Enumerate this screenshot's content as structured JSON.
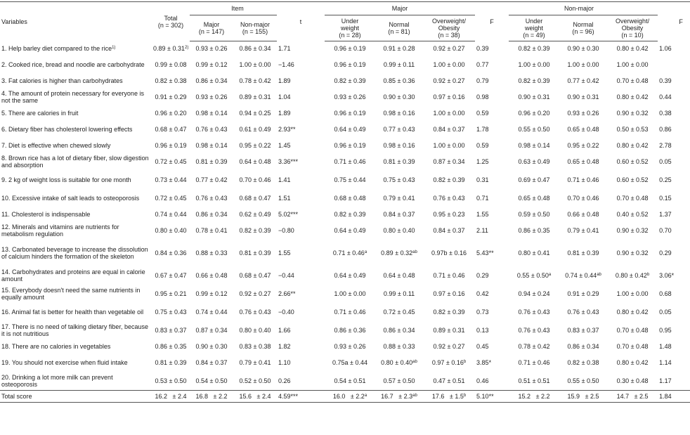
{
  "headers": {
    "variables": "Variables",
    "total": "Total",
    "total_n": "(n = 302)",
    "item": "Item",
    "item_major": "Major",
    "item_major_n": "(n = 147)",
    "item_nonmajor": "Non-major",
    "item_nonmajor_n": "(n = 155)",
    "t": "t",
    "major": "Major",
    "underweight": "Under",
    "underweight2": "weight",
    "major_under_n": "(n = 28)",
    "normal": "Normal",
    "major_normal_n": "(n = 81)",
    "overweight": "Overweight/",
    "obesity": "Obesity",
    "major_over_n": "(n = 38)",
    "f": "F",
    "nonmajor": "Non-major",
    "nonmajor_under_n": "(n = 49)",
    "nonmajor_normal_n": "(n = 96)",
    "nonmajor_over_n": "(n = 10)",
    "f2": "F"
  },
  "rows": [
    {
      "label": "1. Help barley diet compared to the rice",
      "sup": "1)",
      "total": "0.89 ± 0.31",
      "total_sup": "2)",
      "im": "0.93 ± 0.26",
      "inm": "0.86 ± 0.34",
      "t": "1.71",
      "mu": "0.96 ± 0.19",
      "mn": "0.91 ± 0.28",
      "mo": "0.92 ± 0.27",
      "f": "0.39",
      "nu": "0.82 ± 0.39",
      "nn": "0.90 ± 0.30",
      "no": "0.80 ± 0.42",
      "f2": "1.06"
    },
    {
      "label": "2. Cooked rice, bread and noodle are carbohydrate",
      "total": "0.99 ± 0.08",
      "im": "0.99 ± 0.12",
      "inm": "1.00 ± 0.00",
      "t": "−1.46",
      "mu": "0.96 ± 0.19",
      "mn": "0.99 ± 0.11",
      "mo": "1.00 ± 0.00",
      "f": "0.77",
      "nu": "1.00 ± 0.00",
      "nn": "1.00 ± 0.00",
      "no": "1.00 ± 0.00",
      "f2": ""
    },
    {
      "label": "3. Fat calories is higher than carbohydrates",
      "total": "0.82 ± 0.38",
      "im": "0.86 ± 0.34",
      "inm": "0.78 ± 0.42",
      "t": "1.89",
      "mu": "0.82 ± 0.39",
      "mn": "0.85 ± 0.36",
      "mo": "0.92 ± 0.27",
      "f": "0.79",
      "nu": "0.82 ± 0.39",
      "nn": "0.77 ± 0.42",
      "no": "0.70 ± 0.48",
      "f2": "0.39"
    },
    {
      "label": "4. The amount of protein necessary for everyone is not the same",
      "total": "0.91 ± 0.29",
      "im": "0.93 ± 0.26",
      "inm": "0.89 ± 0.31",
      "t": "1.04",
      "mu": "0.93 ± 0.26",
      "mn": "0.90 ± 0.30",
      "mo": "0.97 ± 0.16",
      "f": "0.98",
      "nu": "0.90 ± 0.31",
      "nn": "0.90 ± 0.31",
      "no": "0.80 ± 0.42",
      "f2": "0.44"
    },
    {
      "label": "5. There are calories in fruit",
      "total": "0.96 ± 0.20",
      "im": "0.98 ± 0.14",
      "inm": "0.94 ± 0.25",
      "t": "1.89",
      "mu": "0.96 ± 0.19",
      "mn": "0.98 ± 0.16",
      "mo": "1.00 ± 0.00",
      "f": "0.59",
      "nu": "0.96 ± 0.20",
      "nn": "0.93 ± 0.26",
      "no": "0.90 ± 0.32",
      "f2": "0.38"
    },
    {
      "label": "6. Dietary fiber has cholesterol lowering effects",
      "total": "0.68 ± 0.47",
      "im": "0.76 ± 0.43",
      "inm": "0.61 ± 0.49",
      "t": "2.93**",
      "mu": "0.64 ± 0.49",
      "mn": "0.77 ± 0.43",
      "mo": "0.84 ± 0.37",
      "f": "1.78",
      "nu": "0.55 ± 0.50",
      "nn": "0.65 ± 0.48",
      "no": "0.50 ± 0.53",
      "f2": "0.86"
    },
    {
      "label": "7. Diet is effective when chewed slowly",
      "total": "0.96 ± 0.19",
      "im": "0.98 ± 0.14",
      "inm": "0.95 ± 0.22",
      "t": "1.45",
      "mu": "0.96 ± 0.19",
      "mn": "0.98 ± 0.16",
      "mo": "1.00 ± 0.00",
      "f": "0.59",
      "nu": "0.98 ± 0.14",
      "nn": "0.95 ± 0.22",
      "no": "0.80 ± 0.42",
      "f2": "2.78"
    },
    {
      "label": "8. Brown rice has a lot of dietary fiber, slow digestion and absorption",
      "total": "0.72 ± 0.45",
      "im": "0.81 ± 0.39",
      "inm": "0.64 ± 0.48",
      "t": "3.36***",
      "mu": "0.71 ± 0.46",
      "mn": "0.81 ± 0.39",
      "mo": "0.87 ± 0.34",
      "f": "1.25",
      "nu": "0.63 ± 0.49",
      "nn": "0.65 ± 0.48",
      "no": "0.60 ± 0.52",
      "f2": "0.05"
    },
    {
      "label": "9. 2 kg of weight loss is suitable for one month",
      "total": "0.73 ± 0.44",
      "im": "0.77 ± 0.42",
      "inm": "0.70 ± 0.46",
      "t": "1.41",
      "mu": "0.75 ± 0.44",
      "mn": "0.75 ± 0.43",
      "mo": "0.82 ± 0.39",
      "f": "0.31",
      "nu": "0.69 ± 0.47",
      "nn": "0.71 ± 0.46",
      "no": "0.60 ± 0.52",
      "f2": "0.25"
    },
    {
      "label": "10. Excessive intake of salt leads to osteoporosis",
      "total": "0.72 ± 0.45",
      "im": "0.76 ± 0.43",
      "inm": "0.68 ± 0.47",
      "t": "1.51",
      "mu": "0.68 ± 0.48",
      "mn": "0.79 ± 0.41",
      "mo": "0.76 ± 0.43",
      "f": "0.71",
      "nu": "0.65 ± 0.48",
      "nn": "0.70 ± 0.46",
      "no": "0.70 ± 0.48",
      "f2": "0.15"
    },
    {
      "label": "11. Cholesterol is indispensable",
      "total": "0.74 ± 0.44",
      "im": "0.86 ± 0.34",
      "inm": "0.62 ± 0.49",
      "t": "5.02***",
      "mu": "0.82 ± 0.39",
      "mn": "0.84 ± 0.37",
      "mo": "0.95 ± 0.23",
      "f": "1.55",
      "nu": "0.59 ± 0.50",
      "nn": "0.66 ± 0.48",
      "no": "0.40 ± 0.52",
      "f2": "1.37"
    },
    {
      "label": "12. Minerals and vitamins are nutrients for metabolism regulation",
      "total": "0.80 ± 0.40",
      "im": "0.78 ± 0.41",
      "inm": "0.82 ± 0.39",
      "t": "−0.80",
      "mu": "0.64 ± 0.49",
      "mn": "0.80 ± 0.40",
      "mo": "0.84 ± 0.37",
      "f": "2.11",
      "nu": "0.86 ± 0.35",
      "nn": "0.79 ± 0.41",
      "no": "0.90 ± 0.32",
      "f2": "0.70"
    },
    {
      "label": "13. Carbonated beverage to increase the dissolution of calcium hinders the formation of the skeleton",
      "total": "0.84 ± 0.36",
      "im": "0.88 ± 0.33",
      "inm": "0.81 ± 0.39",
      "t": "1.55",
      "mu": "0.71 ± 0.46",
      "mu_sup": "a",
      "mn": "0.89 ± 0.32",
      "mn_sup": "ab",
      "mo": "0.97b ± 0.16",
      "f": "5.43**",
      "nu": "0.80 ± 0.41",
      "nn": "0.81 ± 0.39",
      "no": "0.90 ± 0.32",
      "f2": "0.29"
    },
    {
      "label": "14. Carbohydrates and proteins are equal in calorie amount",
      "total": "0.67 ± 0.47",
      "im": "0.66 ± 0.48",
      "inm": "0.68 ± 0.47",
      "t": "−0.44",
      "mu": "0.64 ± 0.49",
      "mn": "0.64 ± 0.48",
      "mo": "0.71 ± 0.46",
      "f": "0.29",
      "nu": "0.55 ± 0.50",
      "nu_sup": "a",
      "nn": "0.74 ± 0.44",
      "nn_sup": "ab",
      "no": "0.80 ± 0.42",
      "no_sup": "b",
      "f2": "3.06*"
    },
    {
      "label": "15. Everybody doesn't need the same nutrients in equally amount",
      "total": "0.95 ± 0.21",
      "im": "0.99 ± 0.12",
      "inm": "0.92 ± 0.27",
      "t": "2.66**",
      "mu": "1.00 ± 0.00",
      "mn": "0.99 ± 0.11",
      "mo": "0.97 ± 0.16",
      "f": "0.42",
      "nu": "0.94 ± 0.24",
      "nn": "0.91 ± 0.29",
      "no": "1.00 ± 0.00",
      "f2": "0.68"
    },
    {
      "label": "16. Animal fat is better for health than vegetable oil",
      "total": "0.75 ± 0.43",
      "im": "0.74 ± 0.44",
      "inm": "0.76 ± 0.43",
      "t": "−0.40",
      "mu": "0.71 ± 0.46",
      "mn": "0.72 ± 0.45",
      "mo": "0.82 ± 0.39",
      "f": "0.73",
      "nu": "0.76 ± 0.43",
      "nn": "0.76 ± 0.43",
      "no": "0.80 ± 0.42",
      "f2": "0.05"
    },
    {
      "label": "17. There is no need of talking dietary fiber, because it is not nutritious",
      "total": "0.83 ± 0.37",
      "im": "0.87 ± 0.34",
      "inm": "0.80 ± 0.40",
      "t": "1.66",
      "mu": "0.86 ± 0.36",
      "mn": "0.86 ± 0.34",
      "mo": "0.89 ± 0.31",
      "f": "0.13",
      "nu": "0.76 ± 0.43",
      "nn": "0.83 ± 0.37",
      "no": "0.70 ± 0.48",
      "f2": "0.95"
    },
    {
      "label": "18. There are no calories in vegetables",
      "total": "0.86 ± 0.35",
      "im": "0.90 ± 0.30",
      "inm": "0.83 ± 0.38",
      "t": "1.82",
      "mu": "0.93 ± 0.26",
      "mn": "0.88 ± 0.33",
      "mo": "0.92 ± 0.27",
      "f": "0.45",
      "nu": "0.78 ± 0.42",
      "nn": "0.86 ± 0.34",
      "no": "0.70 ± 0.48",
      "f2": "1.48"
    },
    {
      "label": "19. You should not exercise when fluid intake",
      "total": "0.81 ± 0.39",
      "im": "0.84 ± 0.37",
      "inm": "0.79 ± 0.41",
      "t": "1.10",
      "mu": "0.75a ± 0.44",
      "mn": "0.80 ± 0.40",
      "mn_sup": "ab",
      "mo": "0.97 ± 0.16",
      "mo_sup": "b",
      "f": "3.85*",
      "nu": "0.71 ± 0.46",
      "nn": "0.82 ± 0.38",
      "no": "0.80 ± 0.42",
      "f2": "1.14"
    },
    {
      "label": "20. Drinking a lot more milk can prevent osteoporosis",
      "total": "0.53 ± 0.50",
      "im": "0.54 ± 0.50",
      "inm": "0.52 ± 0.50",
      "t": "0.26",
      "mu": "0.54 ± 0.51",
      "mn": "0.57 ± 0.50",
      "mo": "0.47 ± 0.51",
      "f": "0.46",
      "nu": "0.51 ± 0.51",
      "nn": "0.55 ± 0.50",
      "no": "0.30 ± 0.48",
      "f2": "1.17"
    }
  ],
  "total_row": {
    "label": "Total score",
    "total": "16.2   ± 2.4",
    "im": "16.8   ± 2.2",
    "inm": "15.6   ± 2.4",
    "t": "4.59***",
    "mu": "16.0   ± 2.2",
    "mu_sup": "a",
    "mn": "16.7   ± 2.3",
    "mn_sup": "ab",
    "mo": "17.6   ± 1.5",
    "mo_sup": "b",
    "f": "5.10**",
    "nu": "15.2   ± 2.2",
    "nn": "15.9   ± 2.5",
    "no": "14.7   ± 2.5",
    "f2": "1.84"
  }
}
